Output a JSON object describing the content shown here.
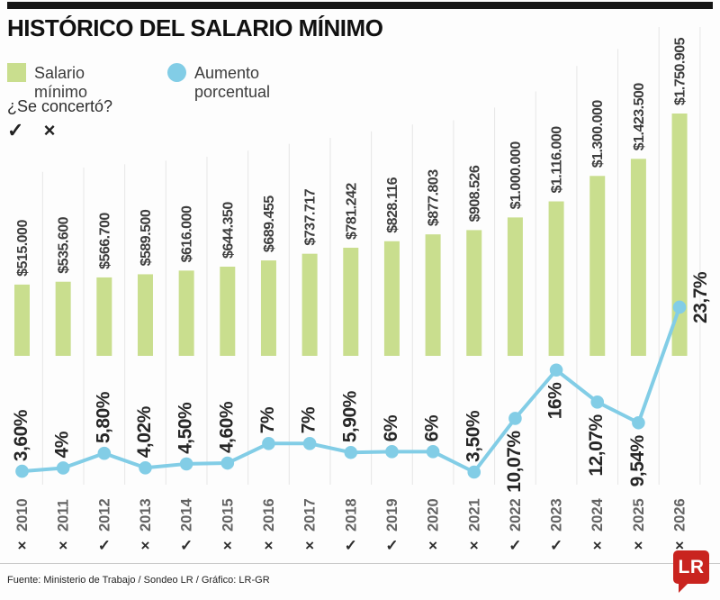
{
  "header": {
    "title": "HISTÓRICO DEL SALARIO MÍNIMO"
  },
  "legend": {
    "items": [
      {
        "label": "Salario mínimo",
        "color": "#c9de8e",
        "shape": "square"
      },
      {
        "label": "Aumento porcentual",
        "color": "#82cde6",
        "shape": "circle"
      }
    ]
  },
  "concerted": {
    "question": "¿Se concertó?",
    "yes_symbol": "✓",
    "no_symbol": "×"
  },
  "chart_data": {
    "type": "bar",
    "title": "HISTÓRICO DEL SALARIO MÍNIMO",
    "categories": [
      "2010",
      "2011",
      "2012",
      "2013",
      "2014",
      "2015",
      "2016",
      "2017",
      "2018",
      "2019",
      "2020",
      "2021",
      "2022",
      "2023",
      "2024",
      "2025",
      "2026"
    ],
    "series": [
      {
        "name": "Salario mínimo",
        "type": "bar",
        "color": "#c9de8e",
        "values": [
          515000,
          535600,
          566700,
          589500,
          616000,
          644350,
          689455,
          737717,
          781242,
          828116,
          877803,
          908526,
          1000000,
          1116000,
          1300000,
          1423500,
          1750905
        ],
        "labels": [
          "$515.000",
          "$535.600",
          "$566.700",
          "$589.500",
          "$616.000",
          "$644.350",
          "$689.455",
          "$737.717",
          "$781.242",
          "$828.116",
          "$877.803",
          "$908.526",
          "$1.000.000",
          "$1.116.000",
          "$1.300.000",
          "$1.423.500",
          "$1.750.905"
        ]
      },
      {
        "name": "Aumento porcentual",
        "type": "line",
        "color": "#82cde6",
        "values": [
          3.6,
          4,
          5.8,
          4.02,
          4.5,
          4.6,
          7,
          7,
          5.9,
          6,
          6,
          3.5,
          10.07,
          16,
          12.07,
          9.54,
          23.7
        ],
        "labels": [
          "3,60%",
          "4%",
          "5,80%",
          "4,02%",
          "4,50%",
          "4,60%",
          "7%",
          "7%",
          "5,90%",
          "6%",
          "6%",
          "3,50%",
          "10,07%",
          "16%",
          "12,07%",
          "9,54%",
          "23,7%"
        ]
      }
    ],
    "agreed": [
      false,
      false,
      true,
      false,
      true,
      false,
      false,
      false,
      true,
      true,
      false,
      false,
      true,
      true,
      false,
      false,
      false
    ],
    "ylim_bar": [
      0,
      1750905
    ],
    "ylim_line_pct": [
      0,
      23.7
    ],
    "grid": "vertical-separators",
    "legend_position": "top-left"
  },
  "footer": {
    "source": "Fuente: Ministerio de Trabajo / Sondeo LR / Gráfico: LR-GR"
  },
  "logo": {
    "text": "LR",
    "color": "#c9241f"
  }
}
